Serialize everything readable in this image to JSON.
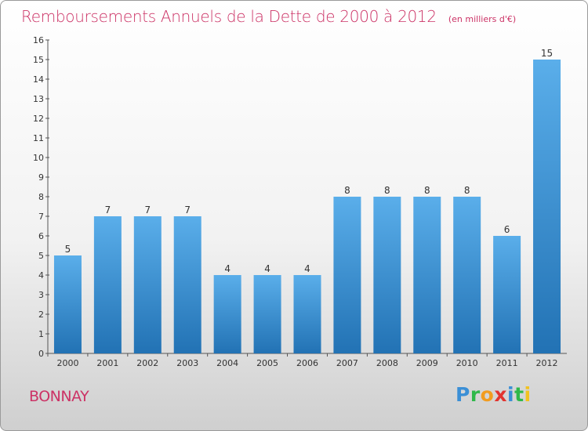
{
  "header": {
    "title": "Remboursements Annuels de la Dette de 2000 à 2012",
    "unit": "(en milliers d'€)"
  },
  "footer": {
    "commune": "BONNAY",
    "logo": "Proxiti"
  },
  "colors": {
    "title": "#cc3366",
    "bar_top": "#5aaeea",
    "bar_bottom": "#2272b4",
    "axis": "#555555"
  },
  "chart_data": {
    "type": "bar",
    "title": "Remboursements Annuels de la Dette de 2000 à 2012",
    "subtitle": "(en milliers d'€)",
    "categories": [
      "2000",
      "2001",
      "2002",
      "2003",
      "2004",
      "2005",
      "2006",
      "2007",
      "2008",
      "2009",
      "2010",
      "2011",
      "2012"
    ],
    "values": [
      5,
      7,
      7,
      7,
      4,
      4,
      4,
      8,
      8,
      8,
      8,
      6,
      15
    ],
    "ylim": [
      0,
      16
    ],
    "yticks": [
      0,
      1,
      2,
      3,
      4,
      5,
      6,
      7,
      8,
      9,
      10,
      11,
      12,
      13,
      14,
      15,
      16
    ],
    "grid": false,
    "legend": "none"
  }
}
